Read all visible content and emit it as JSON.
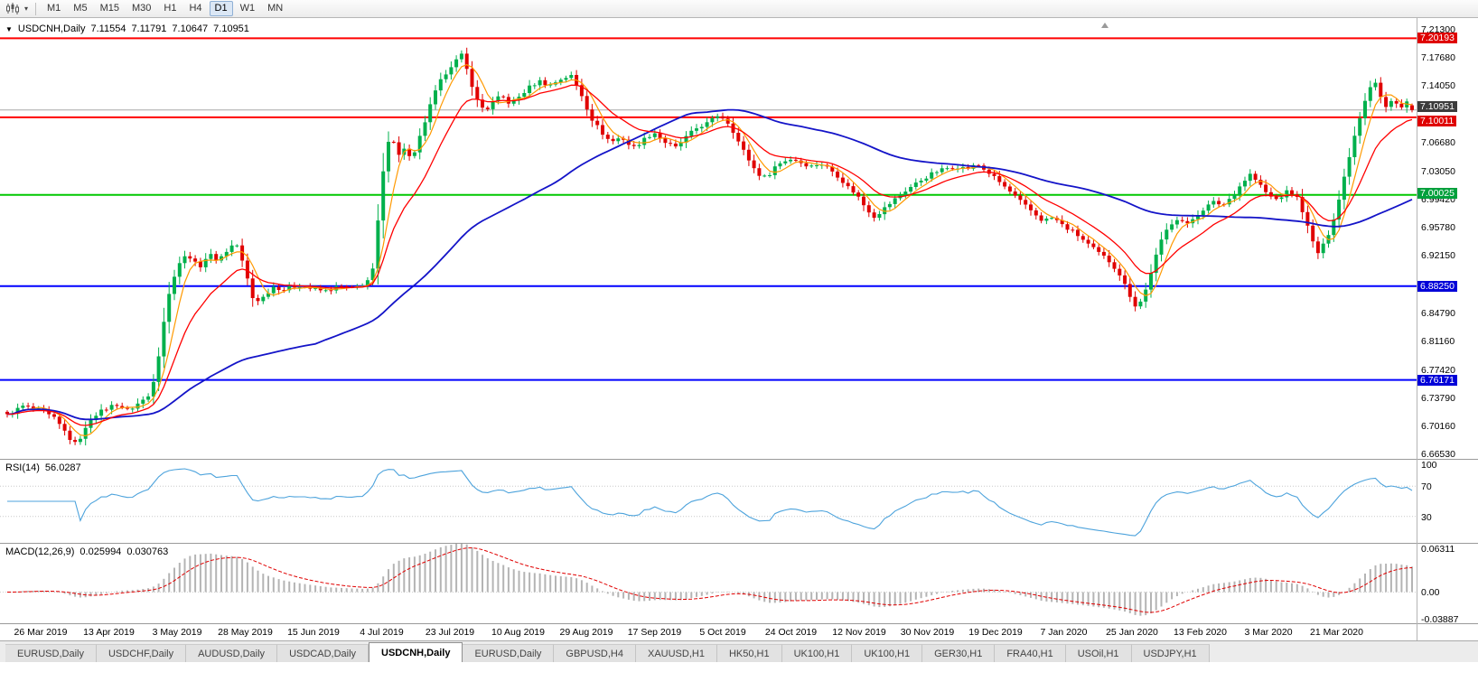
{
  "toolbar": {
    "chart_menu_icon": "candlestick-chart-icon",
    "caret_glyph": "▾",
    "timeframes": [
      "M1",
      "M5",
      "M15",
      "M30",
      "H1",
      "H4",
      "D1",
      "W1",
      "MN"
    ],
    "active_timeframe": "D1"
  },
  "chart_header": {
    "collapse_glyph": "▼",
    "symbol": "USDCNH,Daily",
    "open": "7.11554",
    "high": "7.11791",
    "low": "7.10647",
    "close": "7.10951"
  },
  "price_axis": {
    "ticks": [
      "7.21300",
      "7.17680",
      "7.14050",
      "7.06680",
      "7.03050",
      "6.99420",
      "6.95780",
      "6.92150",
      "6.84790",
      "6.81160",
      "6.77420",
      "6.73790",
      "6.70160",
      "6.66530"
    ],
    "tick_values": [
      7.213,
      7.1768,
      7.1405,
      7.0668,
      7.0305,
      6.9942,
      6.9578,
      6.9215,
      6.8479,
      6.8116,
      6.7742,
      6.7379,
      6.7016,
      6.6653
    ],
    "tags": [
      {
        "text": "7.20193",
        "value": 7.20193,
        "bg": "#df0000",
        "dy": 0
      },
      {
        "text": "7.10951",
        "value": 7.10951,
        "bg": "#3c3c3c",
        "dy": -4
      },
      {
        "text": "7.10011",
        "value": 7.10011,
        "bg": "#df0000",
        "dy": 4
      },
      {
        "text": "7.00025",
        "value": 7.00025,
        "bg": "#00a03c",
        "dy": -2
      },
      {
        "text": "6.88250",
        "value": 6.8825,
        "bg": "#0000d8",
        "dy": 0
      },
      {
        "text": "6.76171",
        "value": 6.76171,
        "bg": "#0000d8",
        "dy": 0
      }
    ]
  },
  "rsi_panel": {
    "name": "RSI(14)",
    "value": "56.0287",
    "axis": [
      {
        "text": "100",
        "value": 100
      },
      {
        "text": "70",
        "value": 70
      },
      {
        "text": "30",
        "value": 30
      }
    ]
  },
  "macd_panel": {
    "name": "MACD(12,26,9)",
    "value_macd": "0.025994",
    "value_signal": "0.030763",
    "axis": [
      {
        "text": "0.06311",
        "value": 0.06311
      },
      {
        "text": "0.00",
        "value": 0
      },
      {
        "text": "-0.03887",
        "value": -0.03887
      }
    ]
  },
  "time_axis": [
    "26 Mar 2019",
    "13 Apr 2019",
    "3 May 2019",
    "28 May 2019",
    "15 Jun 2019",
    "4 Jul 2019",
    "23 Jul 2019",
    "10 Aug 2019",
    "29 Aug 2019",
    "17 Sep 2019",
    "5 Oct 2019",
    "24 Oct 2019",
    "12 Nov 2019",
    "30 Nov 2019",
    "19 Dec 2019",
    "7 Jan 2020",
    "25 Jan 2020",
    "13 Feb 2020",
    "3 Mar 2020",
    "21 Mar 2020"
  ],
  "tabs": {
    "active_index": 4,
    "items": [
      "EURUSD,Daily",
      "USDCHF,Daily",
      "AUDUSD,Daily",
      "USDCAD,Daily",
      "USDCNH,Daily",
      "EURUSD,Daily",
      "GBPUSD,H4",
      "XAUUSD,H1",
      "HK50,H1",
      "UK100,H1",
      "UK100,H1",
      "GER30,H1",
      "FRA40,H1",
      "USOil,H1",
      "USDJPY,H1"
    ],
    "active_tab": "USDCNH,Daily"
  },
  "chart_data": {
    "type": "candlestick",
    "title": "USDCNH Daily",
    "symbol": "USDCNH",
    "timeframe": "Daily",
    "y_range": [
      6.66,
      7.228
    ],
    "num_candles": 270,
    "current_ohlc": {
      "open": 7.11554,
      "high": 7.11791,
      "low": 7.10647,
      "close": 7.10951
    },
    "up_color": "#00b04c",
    "down_color": "#e00000",
    "horizontal_lines": [
      {
        "price": 7.20193,
        "color": "#ff0000",
        "width": 2,
        "role": "resistance"
      },
      {
        "price": 7.10951,
        "color": "#a8a8a8",
        "width": 1,
        "role": "current-price"
      },
      {
        "price": 7.10011,
        "color": "#ff0000",
        "width": 2,
        "role": "resistance"
      },
      {
        "price": 7.00025,
        "color": "#00c800",
        "width": 2,
        "role": "support"
      },
      {
        "price": 6.8825,
        "color": "#0000ff",
        "width": 2,
        "role": "support"
      },
      {
        "price": 6.76171,
        "color": "#0000ff",
        "width": 2,
        "role": "support"
      }
    ],
    "moving_averages": [
      {
        "period": 5,
        "type": "sma",
        "color": "#ff9900",
        "width": 1.2
      },
      {
        "period": 60,
        "type": "sma",
        "color": "#1414c8",
        "width": 1.8
      },
      {
        "period": 13,
        "type": "ema",
        "color": "#ff0000",
        "width": 1.3
      }
    ],
    "price_anchors": [
      [
        8,
        6.716
      ],
      [
        25,
        6.728
      ],
      [
        45,
        6.722
      ],
      [
        60,
        6.712
      ],
      [
        72,
        6.695
      ],
      [
        82,
        6.678
      ],
      [
        92,
        6.692
      ],
      [
        102,
        6.715
      ],
      [
        115,
        6.723
      ],
      [
        128,
        6.731
      ],
      [
        142,
        6.722
      ],
      [
        156,
        6.734
      ],
      [
        166,
        6.742
      ],
      [
        174,
        6.782
      ],
      [
        182,
        6.842
      ],
      [
        190,
        6.888
      ],
      [
        198,
        6.912
      ],
      [
        208,
        6.924
      ],
      [
        220,
        6.906
      ],
      [
        231,
        6.924
      ],
      [
        241,
        6.916
      ],
      [
        251,
        6.928
      ],
      [
        261,
        6.94
      ],
      [
        271,
        6.904
      ],
      [
        281,
        6.862
      ],
      [
        291,
        6.868
      ],
      [
        302,
        6.882
      ],
      [
        315,
        6.878
      ],
      [
        330,
        6.884
      ],
      [
        345,
        6.879
      ],
      [
        360,
        6.876
      ],
      [
        375,
        6.882
      ],
      [
        390,
        6.879
      ],
      [
        405,
        6.886
      ],
      [
        413,
        6.904
      ],
      [
        420,
        6.984
      ],
      [
        427,
        7.058
      ],
      [
        433,
        7.084
      ],
      [
        440,
        7.048
      ],
      [
        448,
        7.062
      ],
      [
        456,
        7.042
      ],
      [
        464,
        7.072
      ],
      [
        472,
        7.1
      ],
      [
        480,
        7.128
      ],
      [
        490,
        7.152
      ],
      [
        500,
        7.168
      ],
      [
        511,
        7.18
      ],
      [
        519,
        7.154
      ],
      [
        528,
        7.122
      ],
      [
        537,
        7.108
      ],
      [
        546,
        7.12
      ],
      [
        555,
        7.128
      ],
      [
        565,
        7.117
      ],
      [
        575,
        7.127
      ],
      [
        586,
        7.139
      ],
      [
        597,
        7.147
      ],
      [
        608,
        7.141
      ],
      [
        620,
        7.149
      ],
      [
        632,
        7.154
      ],
      [
        643,
        7.131
      ],
      [
        654,
        7.1
      ],
      [
        665,
        7.082
      ],
      [
        676,
        7.068
      ],
      [
        688,
        7.075
      ],
      [
        700,
        7.06
      ],
      [
        712,
        7.071
      ],
      [
        724,
        7.081
      ],
      [
        736,
        7.068
      ],
      [
        748,
        7.061
      ],
      [
        760,
        7.075
      ],
      [
        772,
        7.087
      ],
      [
        784,
        7.093
      ],
      [
        796,
        7.104
      ],
      [
        808,
        7.091
      ],
      [
        818,
        7.067
      ],
      [
        828,
        7.047
      ],
      [
        838,
        7.028
      ],
      [
        848,
        7.022
      ],
      [
        858,
        7.037
      ],
      [
        868,
        7.044
      ],
      [
        878,
        7.047
      ],
      [
        888,
        7.041
      ],
      [
        898,
        7.037
      ],
      [
        908,
        7.041
      ],
      [
        918,
        7.034
      ],
      [
        928,
        7.024
      ],
      [
        938,
        7.011
      ],
      [
        948,
        7.001
      ],
      [
        958,
        6.984
      ],
      [
        968,
        6.972
      ],
      [
        978,
        6.982
      ],
      [
        988,
        6.992
      ],
      [
        998,
        7.002
      ],
      [
        1010,
        7.012
      ],
      [
        1022,
        7.021
      ],
      [
        1034,
        7.029
      ],
      [
        1046,
        7.034
      ],
      [
        1058,
        7.037
      ],
      [
        1070,
        7.034
      ],
      [
        1082,
        7.039
      ],
      [
        1094,
        7.029
      ],
      [
        1106,
        7.017
      ],
      [
        1118,
        7.004
      ],
      [
        1130,
        6.991
      ],
      [
        1142,
        6.979
      ],
      [
        1154,
        6.967
      ],
      [
        1166,
        6.971
      ],
      [
        1178,
        6.959
      ],
      [
        1190,
        6.951
      ],
      [
        1202,
        6.939
      ],
      [
        1214,
        6.927
      ],
      [
        1226,
        6.917
      ],
      [
        1238,
        6.901
      ],
      [
        1248,
        6.877
      ],
      [
        1258,
        6.855
      ],
      [
        1266,
        6.869
      ],
      [
        1274,
        6.901
      ],
      [
        1284,
        6.937
      ],
      [
        1294,
        6.961
      ],
      [
        1304,
        6.971
      ],
      [
        1314,
        6.961
      ],
      [
        1324,
        6.974
      ],
      [
        1334,
        6.984
      ],
      [
        1344,
        6.991
      ],
      [
        1354,
        6.987
      ],
      [
        1364,
        6.999
      ],
      [
        1374,
        7.014
      ],
      [
        1384,
        7.027
      ],
      [
        1394,
        7.014
      ],
      [
        1404,
        6.999
      ],
      [
        1414,
        6.994
      ],
      [
        1424,
        7.004
      ],
      [
        1434,
        7.001
      ],
      [
        1442,
        6.979
      ],
      [
        1450,
        6.949
      ],
      [
        1458,
        6.924
      ],
      [
        1466,
        6.937
      ],
      [
        1474,
        6.961
      ],
      [
        1482,
        6.994
      ],
      [
        1490,
        7.034
      ],
      [
        1498,
        7.071
      ],
      [
        1506,
        7.104
      ],
      [
        1514,
        7.134
      ],
      [
        1521,
        7.151
      ],
      [
        1528,
        7.127
      ],
      [
        1535,
        7.111
      ],
      [
        1542,
        7.124
      ],
      [
        1549,
        7.111
      ],
      [
        1556,
        7.123
      ],
      [
        1563,
        7.1095
      ]
    ],
    "indicators": {
      "rsi": {
        "name": "RSI(14)",
        "period": 14,
        "current": 56.0287,
        "levels": [
          100,
          70,
          30
        ],
        "color": "#4da3dc",
        "level_line_color": "#c8c8c8"
      },
      "macd": {
        "name": "MACD(12,26,9)",
        "fast": 12,
        "slow": 26,
        "signal_period": 9,
        "macd_current": 0.025994,
        "signal_current": 0.030763,
        "range": [
          -0.03887,
          0.06311
        ],
        "histogram_color": "#b4b4b4",
        "signal_color": "#e00000"
      }
    }
  }
}
